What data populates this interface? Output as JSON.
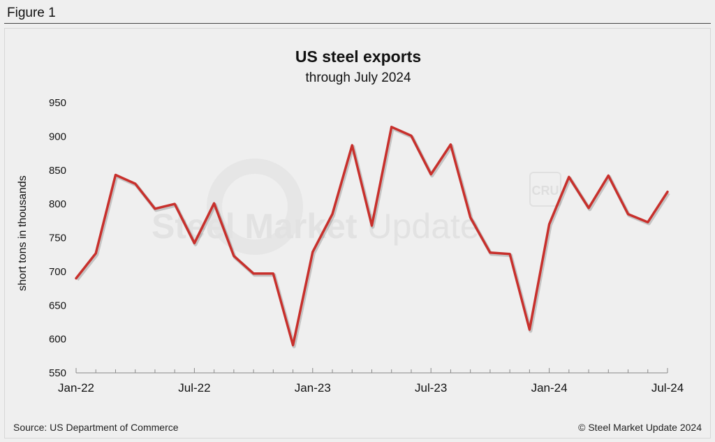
{
  "figure_label": "Figure 1",
  "watermark": {
    "text_bold": "Steel Market",
    "text_light": " Update",
    "badge": "CRU"
  },
  "source": "Source: US Department of Commerce",
  "copyright": "© Steel Market Update 2024",
  "colors": {
    "line": "#c8302c",
    "background": "#efefef",
    "axis": "#888888"
  },
  "chart_data": {
    "type": "line",
    "title": "US steel exports",
    "subtitle": "through July 2024",
    "xlabel": "",
    "ylabel": "short tons in thousands",
    "ylim": [
      550,
      950
    ],
    "yticks": [
      550,
      600,
      650,
      700,
      750,
      800,
      850,
      900,
      950
    ],
    "xtick_labels": [
      {
        "index": 0,
        "label": "Jan-22"
      },
      {
        "index": 6,
        "label": "Jul-22"
      },
      {
        "index": 12,
        "label": "Jan-23"
      },
      {
        "index": 18,
        "label": "Jul-23"
      },
      {
        "index": 24,
        "label": "Jan-24"
      },
      {
        "index": 30,
        "label": "Jul-24"
      }
    ],
    "categories": [
      "Jan-22",
      "Feb-22",
      "Mar-22",
      "Apr-22",
      "May-22",
      "Jun-22",
      "Jul-22",
      "Aug-22",
      "Sep-22",
      "Oct-22",
      "Nov-22",
      "Dec-22",
      "Jan-23",
      "Feb-23",
      "Mar-23",
      "Apr-23",
      "May-23",
      "Jun-23",
      "Jul-23",
      "Aug-23",
      "Sep-23",
      "Oct-23",
      "Nov-23",
      "Dec-23",
      "Jan-24",
      "Feb-24",
      "Mar-24",
      "Apr-24",
      "May-24",
      "Jun-24",
      "Jul-24"
    ],
    "series": [
      {
        "name": "US steel exports",
        "values": [
          690,
          727,
          843,
          830,
          793,
          800,
          742,
          801,
          723,
          697,
          697,
          591,
          729,
          785,
          887,
          768,
          914,
          901,
          844,
          888,
          780,
          728,
          726,
          614,
          770,
          840,
          794,
          842,
          785,
          773,
          818
        ]
      }
    ],
    "grid": false,
    "legend": "none"
  }
}
